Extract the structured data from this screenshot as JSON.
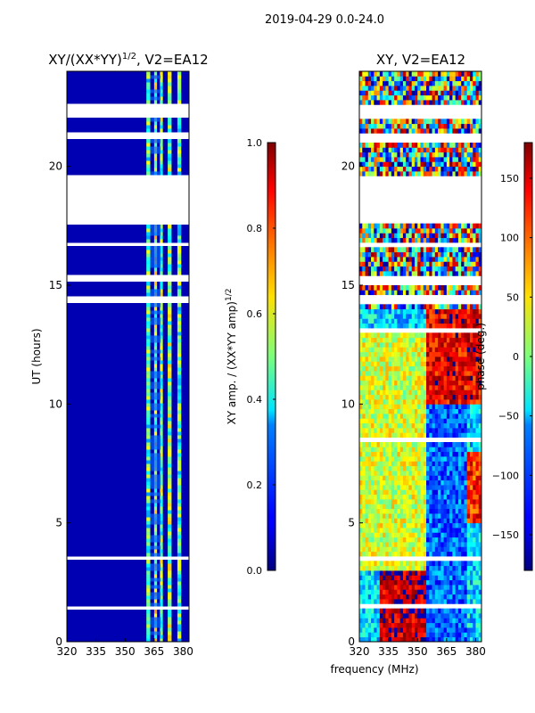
{
  "suptitle": "2019-04-29 0.0-24.0",
  "xlabel": "frequency (MHz)",
  "chart_data": [
    {
      "type": "heatmap",
      "title": "XY/(XX*YY)",
      "title_exp": "1/2",
      "title_suffix": ", V2=EA12",
      "ylabel": "UT (hours)",
      "xlim": [
        320,
        383
      ],
      "ylim": [
        0,
        24
      ],
      "xticks": [
        320,
        335,
        350,
        365,
        380
      ],
      "yticks": [
        0,
        5,
        10,
        15,
        20
      ],
      "colorbar": {
        "label": "XY amp. / (XX*YY amp)",
        "label_exp": "1/2",
        "range": [
          0.0,
          1.0
        ],
        "ticks": [
          "0.0",
          "0.2",
          "0.4",
          "0.6",
          "0.8",
          "1.0"
        ],
        "tick_values": [
          0.0,
          0.2,
          0.4,
          0.6,
          0.8,
          1.0
        ],
        "colormap": "jet"
      },
      "gaps_hours": [
        [
          22.1,
          22.7
        ],
        [
          21.1,
          21.4
        ],
        [
          17.6,
          19.6
        ],
        [
          16.6,
          16.8
        ],
        [
          15.1,
          15.4
        ],
        [
          14.3,
          14.5
        ],
        [
          13.0,
          13.1
        ],
        [
          8.5,
          8.6
        ],
        [
          3.5,
          3.6
        ],
        [
          1.4,
          1.5
        ]
      ],
      "background_value": 0.05,
      "band_columns_mhz": [
        [
          361,
          363,
          0.45
        ],
        [
          365,
          366.5,
          0.55
        ],
        [
          368,
          369.5,
          0.5
        ],
        [
          372,
          374,
          0.5
        ],
        [
          377,
          379,
          0.45
        ]
      ]
    },
    {
      "type": "heatmap",
      "title": "XY, V2=EA12",
      "ylabel": "",
      "xlim": [
        320,
        383
      ],
      "ylim": [
        0,
        24
      ],
      "xticks": [
        320,
        335,
        350,
        365,
        380
      ],
      "yticks": [
        0,
        5,
        10,
        15,
        20
      ],
      "colorbar": {
        "label": "phase (deg.)",
        "range": [
          -180,
          180
        ],
        "ticks": [
          "−150",
          "−100",
          "−50",
          "0",
          "50",
          "100",
          "150"
        ],
        "tick_values": [
          -150,
          -100,
          -50,
          0,
          50,
          100,
          150
        ],
        "colormap": "jet"
      },
      "gaps_hours": [
        [
          22.1,
          22.7
        ],
        [
          21.1,
          21.4
        ],
        [
          17.6,
          19.6
        ],
        [
          16.6,
          16.8
        ],
        [
          15.1,
          15.4
        ],
        [
          14.3,
          14.5
        ],
        [
          13.0,
          13.1
        ],
        [
          8.5,
          8.6
        ],
        [
          3.5,
          3.6
        ],
        [
          1.4,
          1.5
        ]
      ],
      "phase_regions": [
        {
          "x": [
            320,
            355
          ],
          "y": [
            3,
            13
          ],
          "value": 30
        },
        {
          "x": [
            355,
            383
          ],
          "y": [
            10,
            14
          ],
          "value": 140
        },
        {
          "x": [
            360,
            383
          ],
          "y": [
            5,
            8
          ],
          "value": 120
        },
        {
          "x": [
            330,
            360
          ],
          "y": [
            0,
            3
          ],
          "value": 160
        },
        {
          "x": [
            355,
            375
          ],
          "y": [
            0,
            10
          ],
          "value": -100
        }
      ]
    }
  ]
}
